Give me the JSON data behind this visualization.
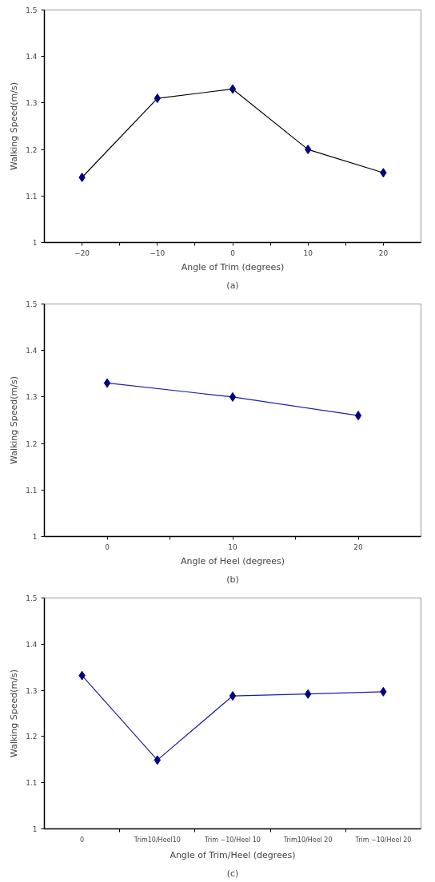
{
  "chart_data": [
    {
      "type": "line",
      "xlabel": "Angle of Trim (degrees)",
      "ylabel": "Walking Speed(m/s)",
      "annotations": [
        "(a)"
      ],
      "x": [
        -20,
        -10,
        0,
        10,
        20
      ],
      "marker": "diamond",
      "line_style": "solid",
      "grid": false,
      "series": [
        {
          "color": "#000000",
          "colors": [
            "#000080",
            "#000080",
            "#000080",
            "#000080",
            "#000080"
          ],
          "values": [
            1.14,
            1.31,
            1.33,
            1.2,
            1.15
          ]
        }
      ],
      "xlim": [
        -25,
        25
      ],
      "xticks": [
        -20,
        {
          "value": -15,
          "label": null
        },
        -10,
        {
          "value": -5,
          "label": null
        },
        0,
        {
          "value": 5,
          "label": null
        },
        10,
        {
          "value": 15,
          "label": null
        },
        20
      ],
      "ylim": [
        1,
        1.5
      ],
      "yticks": [
        1,
        1.1,
        1.2,
        1.3,
        1.4,
        1.5
      ]
    },
    {
      "type": "line",
      "xlabel": "Angle of Heel (degrees)",
      "ylabel": "Walking Speed(m/s)",
      "annotations": [
        "(b)"
      ],
      "x": [
        0,
        10,
        20
      ],
      "marker": "diamond",
      "line_style": "solid",
      "grid": false,
      "series": [
        {
          "color": "#1c1ca8",
          "colors": [
            "#000080",
            "#000080",
            "#000080"
          ],
          "values": [
            1.33,
            1.3,
            1.26
          ]
        }
      ],
      "xlim": [
        -5,
        25
      ],
      "xticks": [
        0,
        {
          "value": 5,
          "label": null
        },
        10,
        {
          "value": 15,
          "label": null
        },
        20
      ],
      "ylim": [
        1,
        1.5
      ],
      "yticks": [
        1,
        1.1,
        1.2,
        1.3,
        1.4,
        1.5
      ]
    },
    {
      "type": "line",
      "xlabel": "Angle of Trim/Heel (degrees)",
      "ylabel": "Walking Speed(m/s)",
      "annotations": [
        "(c)"
      ],
      "categories": [
        "0",
        "Trim10/Heel10",
        "Trim −10/Heel 10",
        "Trim10/Heel 20",
        "Trim −10/Heel 20"
      ],
      "marker": "diamond",
      "line_style": "solid",
      "grid": false,
      "series": [
        {
          "color": "#1c1ca8",
          "colors": [
            "#000080",
            "#000080",
            "#000080",
            "#000080",
            "#000080"
          ],
          "values": [
            1.332,
            1.149,
            1.288,
            1.292,
            1.297
          ]
        }
      ],
      "ylim": [
        1,
        1.5
      ],
      "yticks": [
        1,
        1.1,
        1.2,
        1.3,
        1.4,
        1.5
      ]
    }
  ]
}
